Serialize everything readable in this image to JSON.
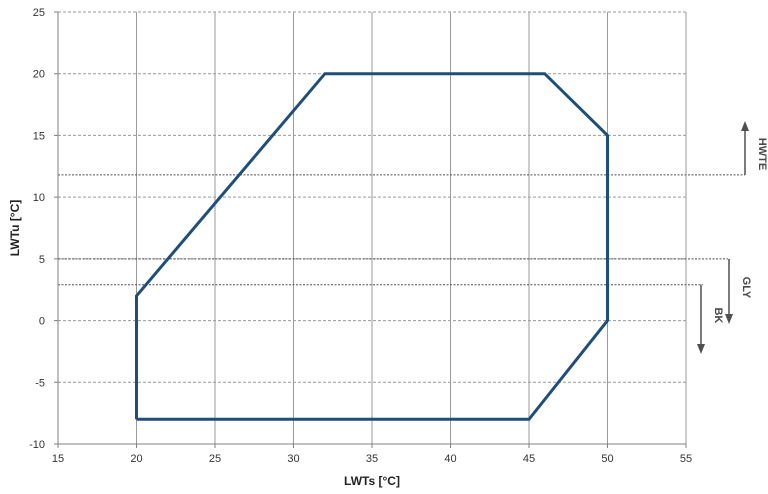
{
  "chart_data": {
    "type": "line",
    "xlabel": "LWTs [°C]",
    "ylabel": "LWTu [°C]",
    "xlim": [
      15,
      55
    ],
    "ylim": [
      -10,
      25
    ],
    "x_ticks": [
      15,
      20,
      25,
      30,
      35,
      40,
      45,
      50,
      55
    ],
    "y_ticks": [
      -10,
      -5,
      0,
      5,
      10,
      15,
      20,
      25
    ],
    "grid": true,
    "series": [
      {
        "color": "#1f4e79",
        "points": [
          [
            20,
            -8
          ],
          [
            20,
            2
          ],
          [
            32,
            20
          ],
          [
            46,
            20
          ],
          [
            50,
            15
          ],
          [
            50,
            0
          ],
          [
            45,
            -8
          ],
          [
            20,
            -8
          ]
        ]
      }
    ],
    "annotations": [
      {
        "label": "HWTE",
        "y": 11.8,
        "direction": "up"
      },
      {
        "label": "GLY",
        "y": 5.0,
        "direction": "down"
      },
      {
        "label": "BK",
        "y": 2.9,
        "direction": "down"
      }
    ]
  }
}
